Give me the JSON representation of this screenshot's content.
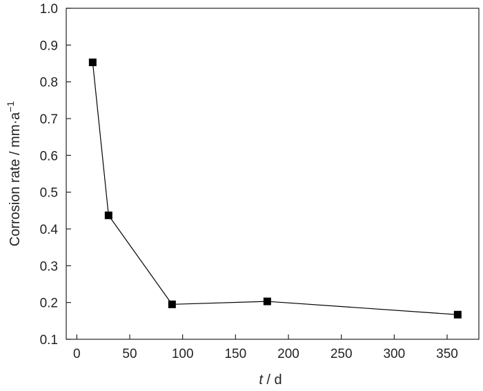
{
  "chart_data": {
    "type": "line",
    "xlabel": {
      "var": "t",
      "sep": " / ",
      "unit": "d"
    },
    "ylabel": {
      "text": "Corrosion rate / mm·a",
      "sup": "−1"
    },
    "xlim": [
      -10,
      380
    ],
    "ylim": [
      0.1,
      1.0
    ],
    "xticks": [
      0,
      50,
      100,
      150,
      200,
      250,
      300,
      350
    ],
    "yticks": [
      0.1,
      0.2,
      0.3,
      0.4,
      0.5,
      0.6,
      0.7,
      0.8,
      0.9,
      1.0
    ],
    "ytick_labels": [
      "0.1",
      "0.2",
      "0.3",
      "0.4",
      "0.5",
      "0.6",
      "0.7",
      "0.8",
      "0.9",
      "1.0"
    ],
    "grid": false,
    "series": [
      {
        "marker": "square",
        "color": "#000000",
        "x": [
          15,
          30,
          90,
          180,
          360
        ],
        "y": [
          0.853,
          0.437,
          0.195,
          0.203,
          0.167
        ]
      }
    ]
  }
}
